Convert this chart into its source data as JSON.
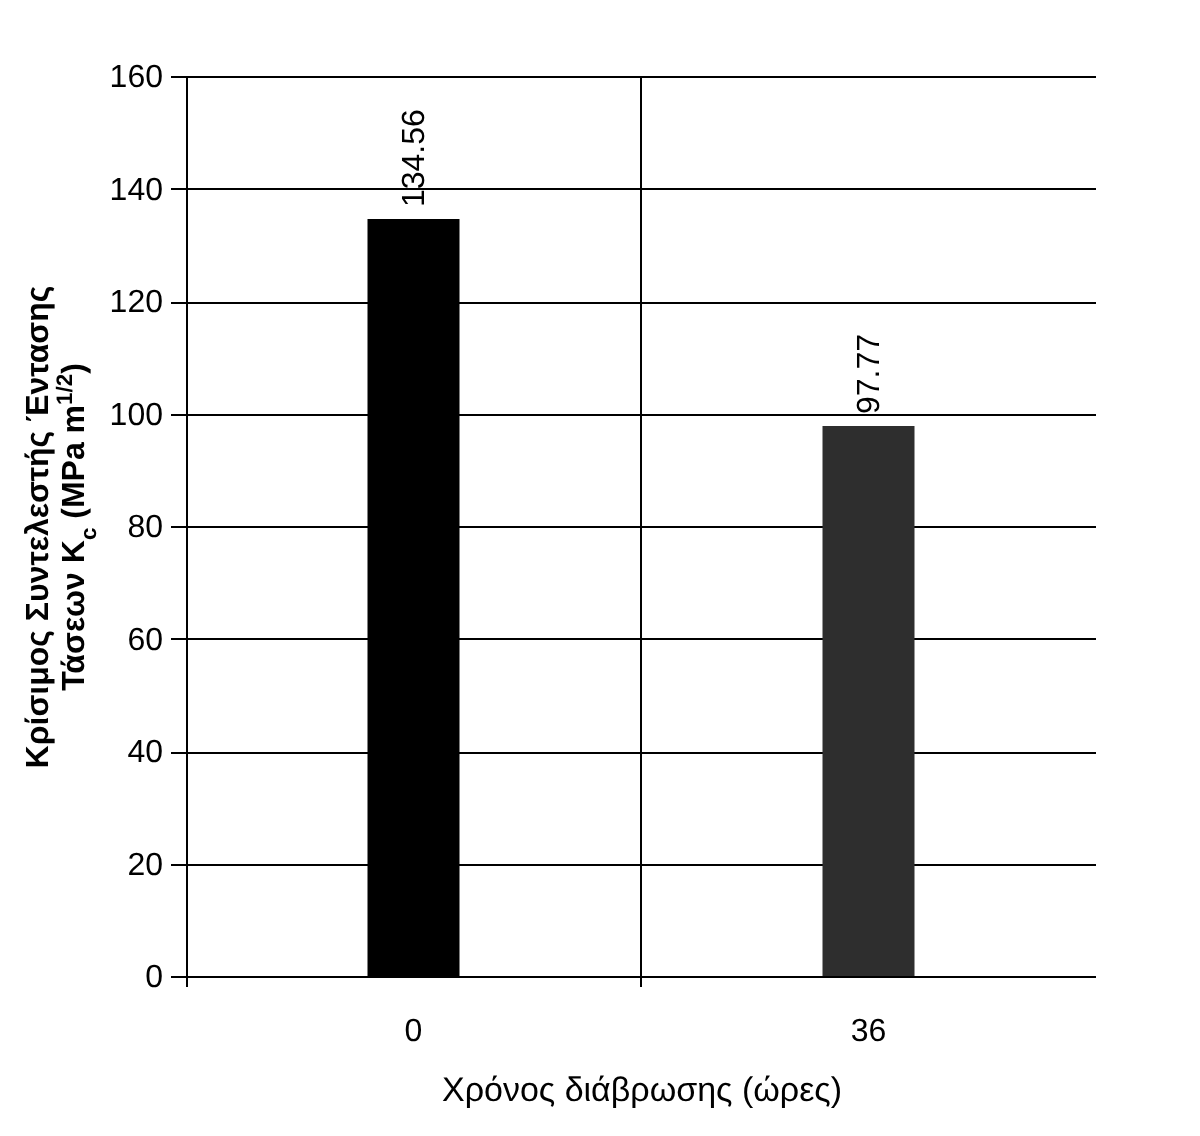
{
  "chart_data": {
    "type": "bar",
    "xlabel": "Χρόνος διάβρωσης (ώρες)",
    "ylabel": "Κρίσιμος Συντελεστής Έντασης\nΤάσεων K$_{c}$ (MPa m$^{1/2}$)",
    "categories": [
      "0",
      "36"
    ],
    "values": [
      134.56,
      97.77
    ],
    "colors": [
      "#000000",
      "#2e2e2e"
    ],
    "ylim": [
      0,
      160
    ],
    "yticks": [
      0,
      20,
      40,
      60,
      80,
      100,
      120,
      140,
      160
    ],
    "grid": true,
    "data_labels": true,
    "legend": false
  }
}
